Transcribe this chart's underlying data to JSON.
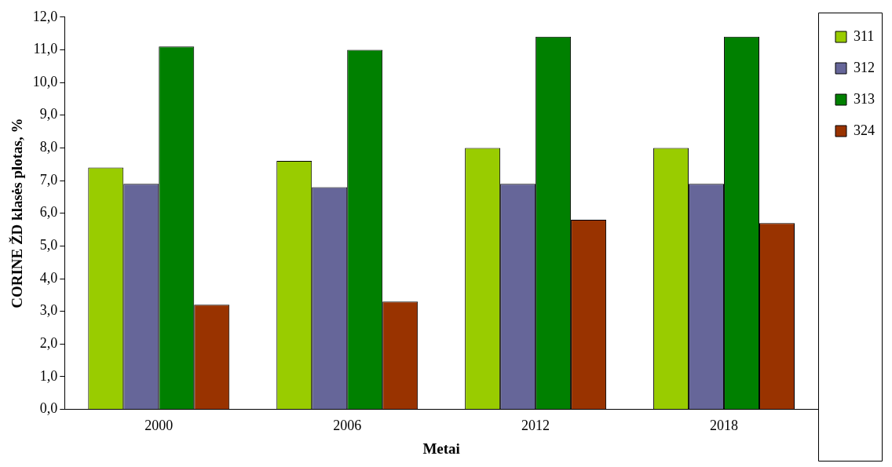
{
  "chart_data": {
    "type": "bar",
    "xlabel": "Metai",
    "ylabel": "CORINE ŽD klasės plotas, %",
    "categories": [
      "2000",
      "2006",
      "2012",
      "2018"
    ],
    "series": [
      {
        "name": "311",
        "color": "#99cc00",
        "values": [
          7.4,
          7.6,
          8.0,
          8.0
        ]
      },
      {
        "name": "312",
        "color": "#666699",
        "values": [
          6.9,
          6.8,
          6.9,
          6.9
        ]
      },
      {
        "name": "313",
        "color": "#008000",
        "values": [
          11.1,
          11.0,
          11.4,
          11.4
        ]
      },
      {
        "name": "324",
        "color": "#993300",
        "values": [
          3.2,
          3.3,
          5.8,
          5.7
        ]
      }
    ],
    "ylim": [
      0,
      12
    ],
    "yticks": [
      {
        "value": 0,
        "label": "0,0"
      },
      {
        "value": 1,
        "label": "1,0"
      },
      {
        "value": 2,
        "label": "2,0"
      },
      {
        "value": 3,
        "label": "3,0"
      },
      {
        "value": 4,
        "label": "4,0"
      },
      {
        "value": 5,
        "label": "5,0"
      },
      {
        "value": 6,
        "label": "6,0"
      },
      {
        "value": 7,
        "label": "7,0"
      },
      {
        "value": 8,
        "label": "8,0"
      },
      {
        "value": 9,
        "label": "9,0"
      },
      {
        "value": 10,
        "label": "10,0"
      },
      {
        "value": 11,
        "label": "11,0"
      },
      {
        "value": 12,
        "label": "12,0"
      }
    ],
    "grid": false,
    "legend": "top right"
  }
}
